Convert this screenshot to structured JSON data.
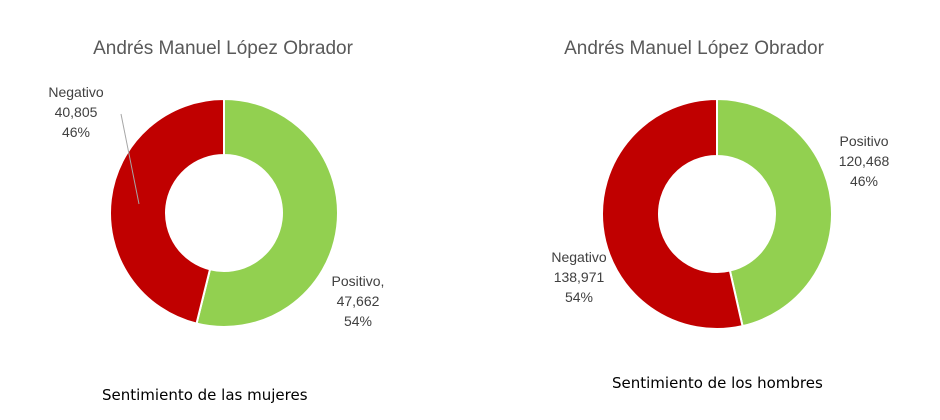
{
  "chart_data": [
    {
      "type": "pie",
      "donut": true,
      "title": "Andrés Manuel López Obrador",
      "caption": "Sentimiento de las mujeres",
      "slices": [
        {
          "label": "Positivo,",
          "value": 47662,
          "value_text": "47,662",
          "percent": "54%",
          "color": "#92d050"
        },
        {
          "label": "Negativo",
          "value": 40805,
          "value_text": "40,805",
          "percent": "46%",
          "color": "#c00000"
        }
      ]
    },
    {
      "type": "pie",
      "donut": true,
      "title": "Andrés Manuel López Obrador",
      "caption": "Sentimiento de los hombres",
      "slices": [
        {
          "label": "Positivo",
          "value": 120468,
          "value_text": "120,468",
          "percent": "46%",
          "color": "#92d050"
        },
        {
          "label": "Negativo",
          "value": 138971,
          "value_text": "138,971",
          "percent": "54%",
          "color": "#c00000"
        }
      ]
    }
  ]
}
